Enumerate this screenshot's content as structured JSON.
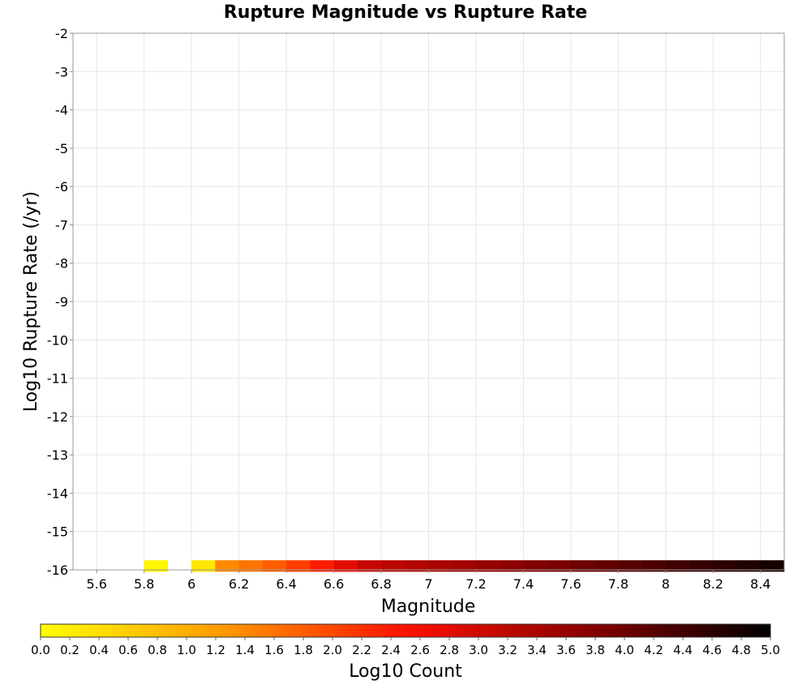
{
  "chart_data": {
    "type": "heatmap",
    "title": "Rupture Magnitude vs Rupture Rate",
    "xlabel": "Magnitude",
    "ylabel": "Log10 Rupture Rate (/yr)",
    "xlim": [
      5.5,
      8.5
    ],
    "ylim": [
      -16,
      -2
    ],
    "x_ticks": [
      "5.6",
      "5.8",
      "6",
      "6.2",
      "6.4",
      "6.6",
      "6.8",
      "7",
      "7.2",
      "7.4",
      "7.6",
      "7.8",
      "8",
      "8.2",
      "8.4"
    ],
    "y_ticks": [
      "-2",
      "-3",
      "-4",
      "-5",
      "-6",
      "-7",
      "-8",
      "-9",
      "-10",
      "-11",
      "-12",
      "-13",
      "-14",
      "-15",
      "-16"
    ],
    "grid": true,
    "x_bins": [
      5.55,
      5.65,
      5.75,
      5.85,
      5.95,
      6.05,
      6.15,
      6.25,
      6.35,
      6.45,
      6.55,
      6.65,
      6.75,
      6.85,
      6.95,
      7.05,
      7.15,
      7.25,
      7.35,
      7.45,
      7.55,
      7.65,
      7.75,
      7.85,
      7.95,
      8.05,
      8.15,
      8.25,
      8.35,
      8.45
    ],
    "y_bin_width": 0.3,
    "bottom_row": {
      "y": -15.9,
      "values": [
        null,
        null,
        null,
        0.1,
        null,
        0.3,
        1.4,
        1.6,
        1.8,
        2.1,
        2.4,
        2.8,
        3.1,
        3.2,
        3.3,
        3.4,
        3.5,
        3.6,
        3.7,
        3.8,
        3.9,
        4.0,
        4.1,
        4.2,
        4.3,
        4.4,
        4.5,
        4.6,
        4.7,
        4.8
      ]
    },
    "colorbar": {
      "label": "Log10 Count",
      "range": [
        0,
        5
      ],
      "ticks": [
        "0.0",
        "0.2",
        "0.4",
        "0.6",
        "0.8",
        "1.0",
        "1.2",
        "1.4",
        "1.6",
        "1.8",
        "2.0",
        "2.2",
        "2.4",
        "2.6",
        "2.8",
        "3.0",
        "3.2",
        "3.4",
        "3.6",
        "3.8",
        "4.0",
        "4.2",
        "4.4",
        "4.6",
        "4.8",
        "5.0"
      ],
      "colors": [
        "#ffff00",
        "#ff9900",
        "#ff1100",
        "#880000",
        "#000000"
      ]
    }
  }
}
